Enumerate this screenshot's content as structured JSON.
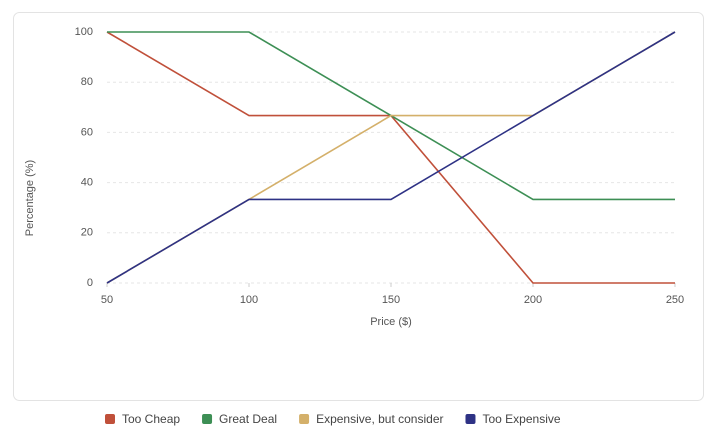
{
  "chart_data": {
    "type": "line",
    "x_label": "Price ($)",
    "y_label": "Percentage (%)",
    "x": [
      50,
      100,
      150,
      200,
      250
    ],
    "series": [
      {
        "name": "Too Cheap",
        "color": "#c0503a",
        "values": [
          100,
          66.7,
          66.7,
          0,
          0
        ]
      },
      {
        "name": "Great Deal",
        "color": "#3d8f55",
        "values": [
          100,
          100,
          66.7,
          33.3,
          33.3
        ]
      },
      {
        "name": "Expensive, but consider",
        "color": "#d4b06a",
        "values": [
          0,
          33.3,
          66.7,
          66.7,
          100
        ]
      },
      {
        "name": "Too Expensive",
        "color": "#2e3285",
        "values": [
          0,
          33.3,
          33.3,
          66.7,
          100
        ]
      }
    ],
    "xlim": [
      50,
      250
    ],
    "xticks": [
      50,
      100,
      150,
      200,
      250
    ],
    "ylim": [
      0,
      100
    ],
    "yticks": [
      0,
      20,
      40,
      60,
      80,
      100
    ],
    "grid": true,
    "legend": "bottom"
  }
}
